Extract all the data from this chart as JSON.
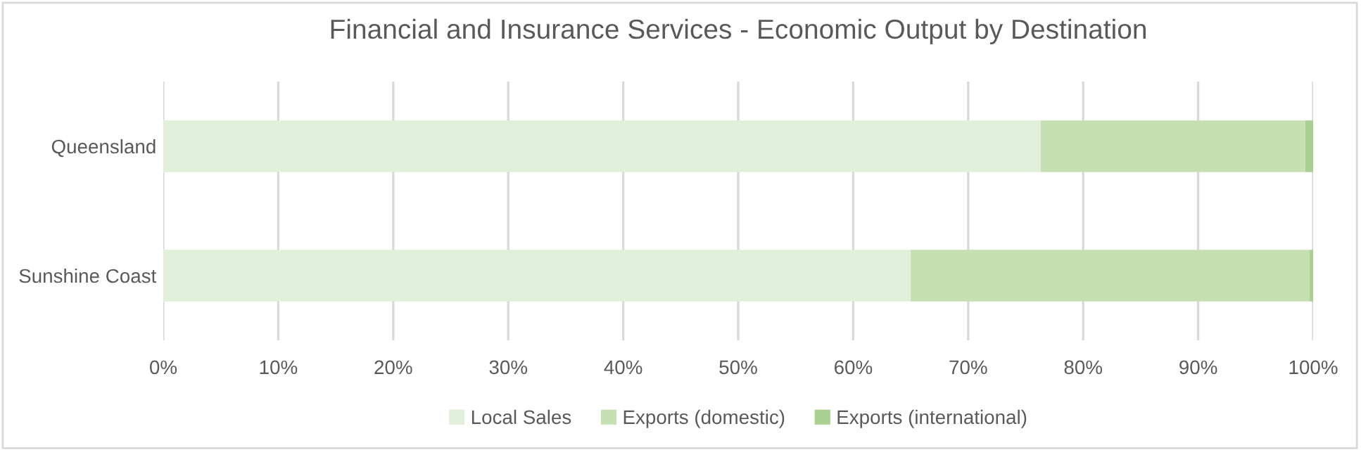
{
  "chart_data": {
    "type": "bar",
    "orientation": "horizontal",
    "stacked": true,
    "title": "Financial and Insurance Services - Economic Output by Destination",
    "categories": [
      "Queensland",
      "Sunshine Coast"
    ],
    "series": [
      {
        "name": "Local Sales",
        "color": "#e2efda",
        "values": [
          76.3,
          65.0
        ]
      },
      {
        "name": "Exports (domestic)",
        "color": "#c6e0b4",
        "values": [
          23.0,
          34.7
        ]
      },
      {
        "name": "Exports (international)",
        "color": "#a9d08e",
        "values": [
          0.7,
          0.3
        ]
      }
    ],
    "xlim": [
      0,
      100
    ],
    "xticks": [
      {
        "value": 0,
        "label": "0%"
      },
      {
        "value": 10,
        "label": "10%"
      },
      {
        "value": 20,
        "label": "20%"
      },
      {
        "value": 30,
        "label": "30%"
      },
      {
        "value": 40,
        "label": "40%"
      },
      {
        "value": 50,
        "label": "50%"
      },
      {
        "value": 60,
        "label": "60%"
      },
      {
        "value": 70,
        "label": "70%"
      },
      {
        "value": 80,
        "label": "80%"
      },
      {
        "value": 90,
        "label": "90%"
      },
      {
        "value": 100,
        "label": "100%"
      }
    ],
    "grid": "x",
    "legend": "bottom"
  }
}
